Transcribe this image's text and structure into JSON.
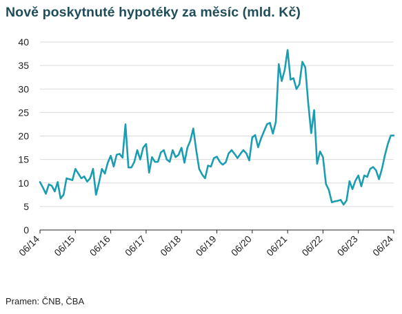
{
  "title": "Nově poskytnuté hypotéky za měsíc (mld. Kč)",
  "source": "Pramen: ČNB, ČBA",
  "colors": {
    "line": "#1a9db0",
    "grid": "#d9d9d9",
    "axis": "#222222",
    "title": "#1f4e59"
  },
  "chart_data": {
    "type": "line",
    "title": "Nově poskytnuté hypotéky za měsíc (mld. Kč)",
    "xlabel": "",
    "ylabel": "",
    "ylim": [
      0,
      40
    ],
    "yticks": [
      0,
      5,
      10,
      15,
      20,
      25,
      30,
      35,
      40
    ],
    "xlim": [
      0,
      120
    ],
    "xticks": [
      {
        "label": "06/14",
        "x": 0
      },
      {
        "label": "06/15",
        "x": 12
      },
      {
        "label": "06/16",
        "x": 24
      },
      {
        "label": "06/17",
        "x": 36
      },
      {
        "label": "06/18",
        "x": 48
      },
      {
        "label": "06/19",
        "x": 60
      },
      {
        "label": "06/20",
        "x": 72
      },
      {
        "label": "06/21",
        "x": 84
      },
      {
        "label": "06/22",
        "x": 96
      },
      {
        "label": "06/23",
        "x": 108
      },
      {
        "label": "06/24",
        "x": 120
      }
    ],
    "grid": true,
    "series": [
      {
        "values": [
          10.2,
          9.0,
          7.7,
          9.7,
          9.4,
          8.2,
          10.2,
          6.7,
          7.5,
          11.0,
          10.8,
          10.6,
          13.0,
          12.0,
          11.0,
          11.4,
          10.3,
          11.0,
          13.0,
          7.5,
          10.0,
          13.0,
          12.0,
          14.3,
          15.8,
          13.5,
          16.0,
          16.2,
          15.4,
          22.5,
          13.3,
          13.3,
          14.5,
          17.0,
          15.0,
          17.5,
          18.3,
          12.2,
          15.5,
          14.5,
          14.5,
          16.5,
          17.0,
          15.0,
          14.5,
          17.0,
          15.5,
          16.0,
          17.5,
          14.3,
          17.5,
          19.0,
          21.6,
          17.0,
          13.0,
          11.8,
          11.0,
          13.7,
          13.5,
          15.3,
          15.6,
          14.5,
          13.9,
          14.4,
          16.3,
          17.0,
          16.2,
          15.3,
          16.2,
          17.0,
          16.3,
          14.8,
          19.7,
          20.2,
          17.6,
          19.5,
          21.0,
          22.5,
          22.8,
          20.5,
          23.0,
          35.3,
          31.7,
          34.0,
          38.3,
          32.0,
          32.3,
          30.0,
          31.0,
          35.8,
          34.6,
          27.0,
          20.6,
          25.5,
          14.1,
          16.7,
          15.5,
          9.8,
          8.5,
          5.9,
          6.1,
          6.2,
          6.4,
          5.4,
          6.3,
          10.4,
          8.7,
          10.5,
          11.6,
          9.3,
          11.6,
          11.3,
          13.0,
          13.4,
          12.7,
          10.8,
          13.0,
          15.9,
          18.3,
          20.1,
          20.1
        ]
      }
    ]
  }
}
